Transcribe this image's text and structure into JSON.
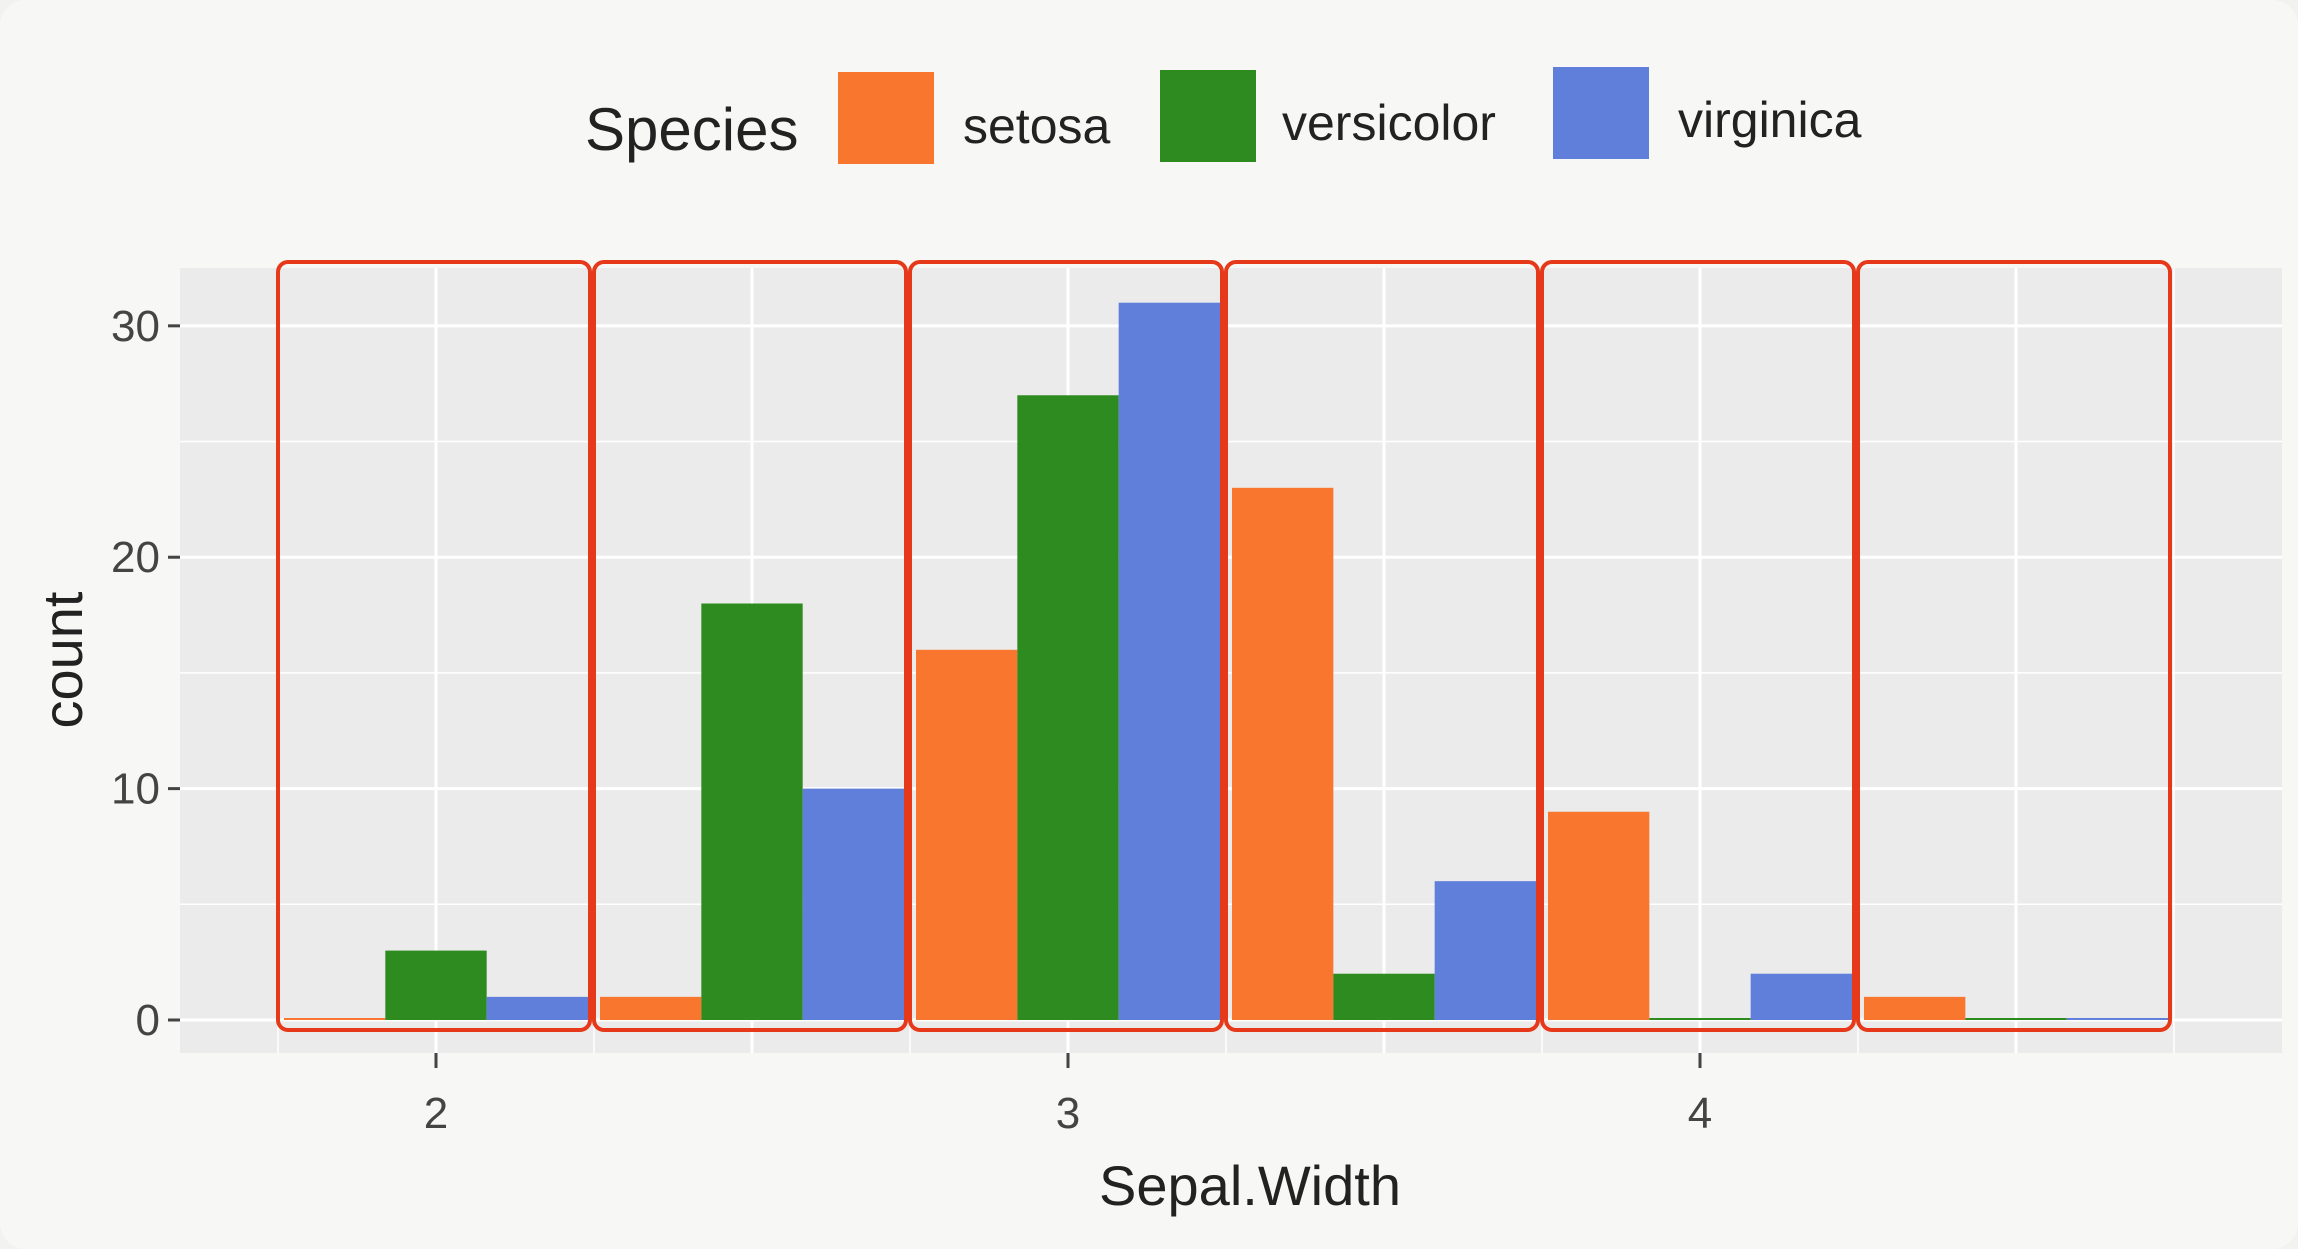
{
  "chart_data": {
    "type": "bar",
    "title": "",
    "xlabel": "Sepal.Width",
    "ylabel": "count",
    "legend_title": "Species",
    "legend_position": "top",
    "grid": true,
    "ylim": [
      0,
      32.5
    ],
    "y_ticks": [
      "0",
      "10",
      "20",
      "30"
    ],
    "x_ticks": [
      "2",
      "3",
      "4"
    ],
    "x_tick_values": [
      2,
      3,
      4
    ],
    "bins": [
      {
        "start": 1.75,
        "end": 2.25
      },
      {
        "start": 2.25,
        "end": 2.75
      },
      {
        "start": 2.75,
        "end": 3.25
      },
      {
        "start": 3.25,
        "end": 3.75
      },
      {
        "start": 3.75,
        "end": 4.25
      },
      {
        "start": 4.25,
        "end": 4.75
      }
    ],
    "series": [
      {
        "name": "setosa",
        "color": "#F8762E",
        "values": [
          0,
          1,
          16,
          23,
          9,
          1
        ]
      },
      {
        "name": "versicolor",
        "color": "#2E8B1F",
        "values": [
          3,
          18,
          27,
          2,
          0,
          0
        ]
      },
      {
        "name": "virginica",
        "color": "#5F7FDB",
        "values": [
          1,
          10,
          31,
          6,
          2,
          0
        ]
      }
    ],
    "highlight_color": "#E5391A"
  }
}
